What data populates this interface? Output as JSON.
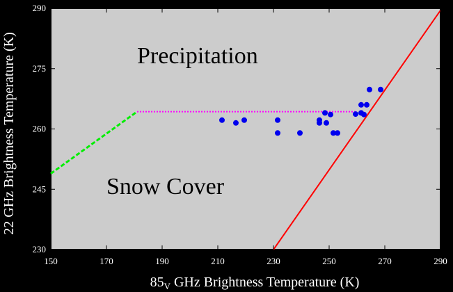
{
  "chart_data": {
    "type": "scatter",
    "xlabel": "85",
    "xlabel_sub": "V",
    "xlabel_rest": " GHz Brightness Temperature (K)",
    "ylabel": "22 GHz Brightness Temperature (K)",
    "xlim": [
      150,
      290
    ],
    "ylim": [
      230,
      290
    ],
    "x_ticks": [
      150,
      170,
      190,
      210,
      230,
      250,
      270,
      290
    ],
    "y_ticks": [
      230,
      245,
      260,
      275,
      290
    ],
    "annotations": [
      {
        "name": "precipitation",
        "text": "Precipitation",
        "x": 181,
        "y": 276.3
      },
      {
        "name": "snow-cover",
        "text": "Snow Cover",
        "x": 170,
        "y": 243.8
      }
    ],
    "points": [
      {
        "x": 211.5,
        "y": 262.2
      },
      {
        "x": 216.5,
        "y": 261.5
      },
      {
        "x": 219.5,
        "y": 262.2
      },
      {
        "x": 231.5,
        "y": 262.2
      },
      {
        "x": 231.5,
        "y": 259.0
      },
      {
        "x": 239.5,
        "y": 259.0
      },
      {
        "x": 246.5,
        "y": 262.2
      },
      {
        "x": 246.5,
        "y": 261.5
      },
      {
        "x": 248.5,
        "y": 264.0
      },
      {
        "x": 249.0,
        "y": 261.5
      },
      {
        "x": 250.5,
        "y": 263.6
      },
      {
        "x": 251.5,
        "y": 259.0
      },
      {
        "x": 253.0,
        "y": 259.0
      },
      {
        "x": 259.5,
        "y": 263.7
      },
      {
        "x": 261.5,
        "y": 264.0
      },
      {
        "x": 261.5,
        "y": 266.0
      },
      {
        "x": 262.5,
        "y": 263.6
      },
      {
        "x": 263.5,
        "y": 266.0
      },
      {
        "x": 264.5,
        "y": 269.8
      },
      {
        "x": 268.5,
        "y": 269.8
      }
    ],
    "lines": [
      {
        "name": "green-dashed-threshold",
        "color": "#00ee00",
        "style": "dashed",
        "points": [
          [
            150,
            248.9
          ],
          [
            181,
            264.3
          ]
        ]
      },
      {
        "name": "magenta-dotted-threshold",
        "color": "#ff00ff",
        "style": "dotted",
        "points": [
          [
            181,
            264.3
          ],
          [
            260,
            264.3
          ]
        ]
      },
      {
        "name": "red-solid-threshold",
        "color": "#ff0000",
        "style": "solid",
        "points": [
          [
            230,
            230
          ],
          [
            290,
            289.5
          ]
        ]
      }
    ],
    "colors": {
      "background": "#000000",
      "plot": "#cccccc",
      "points": "#0000ee",
      "text": "#ffffff"
    }
  }
}
